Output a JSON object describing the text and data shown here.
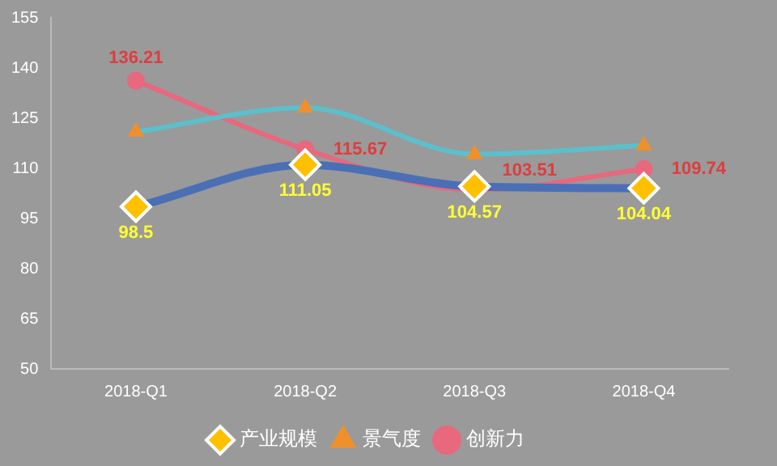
{
  "chart_data": {
    "type": "line",
    "categories": [
      "2018-Q1",
      "2018-Q2",
      "2018-Q3",
      "2018-Q4"
    ],
    "series": [
      {
        "name": "产业规模",
        "color": "#4a6fb5",
        "marker": "diamond",
        "values": [
          98.5,
          111.05,
          104.57,
          104.04
        ],
        "value_labels": [
          "98.5",
          "111.05",
          "104.57",
          "104.04"
        ]
      },
      {
        "name": "景气度",
        "color": "#5bc0cc",
        "marker": "triangle",
        "values": [
          120.9,
          128.1,
          114.2,
          116.8
        ]
      },
      {
        "name": "创新力",
        "color": "#e8687e",
        "marker": "circle",
        "values": [
          136.21,
          115.67,
          103.51,
          109.74
        ],
        "value_labels": [
          "136.21",
          "115.67",
          "103.51",
          "109.74"
        ]
      }
    ],
    "ylim": [
      50,
      155
    ],
    "yticks": [
      50,
      65,
      80,
      95,
      110,
      125,
      140,
      155
    ],
    "grid": false,
    "legend": "bottom"
  }
}
